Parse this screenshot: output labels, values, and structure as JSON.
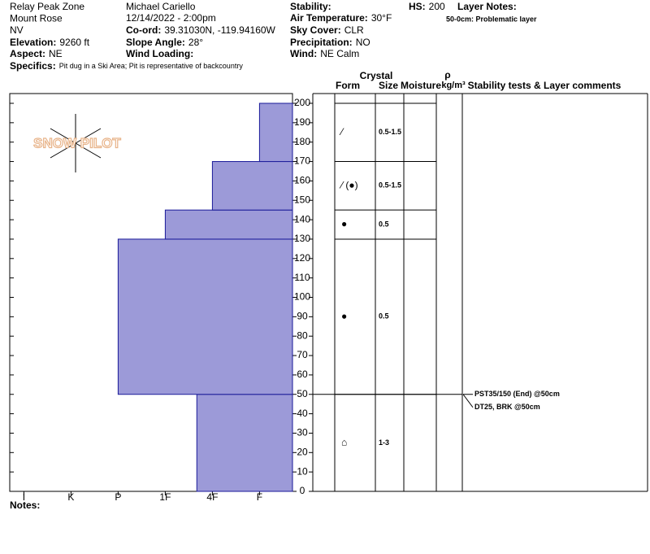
{
  "header": {
    "location": [
      "Relay Peak Zone",
      "Mount Rose",
      "NV"
    ],
    "observer": "Michael Cariello",
    "date": "12/14/2022 - 2:00pm",
    "fields": [
      {
        "label": "Elevation:",
        "value": "9260 ft"
      },
      {
        "label": "Aspect:",
        "value": "NE"
      },
      {
        "label": "Specifics:",
        "value": "Pit dug in a Ski Area; Pit is representative of backcountry"
      },
      {
        "label": "Co-ord:",
        "value": "39.31030N, -119.94160W"
      },
      {
        "label": "Slope Angle:",
        "value": "28°"
      },
      {
        "label": "Wind Loading:"
      },
      {
        "label": "Stability:"
      },
      {
        "label": "Air Temperature:",
        "value": "30°F"
      },
      {
        "label": "Sky Cover:",
        "value": "CLR"
      },
      {
        "label": "Precipitation:",
        "value": "NO"
      },
      {
        "label": "Wind:",
        "value": "NE Calm"
      },
      {
        "label": "HS:",
        "value": "200"
      },
      {
        "label": "Layer Notes:"
      }
    ],
    "layer_note": "50-0cm: Problematic layer"
  },
  "columns": {
    "crystal": "Crystal",
    "form": "Form",
    "size": "Size",
    "moisture": "Moisture",
    "density": "ρ",
    "density_unit": "kg/m³",
    "comments": "Stability tests & Layer comments"
  },
  "watermark": "SNOW PILOT",
  "notes": "Notes:",
  "chart_data": {
    "type": "hardness-profile",
    "color": "#9c9ad8",
    "ylim": [
      0,
      200
    ],
    "yticks": [
      0,
      10,
      20,
      30,
      40,
      50,
      60,
      70,
      80,
      90,
      100,
      110,
      120,
      130,
      140,
      150,
      160,
      170,
      180,
      190,
      200
    ],
    "xlim": [
      0.3,
      6.3
    ],
    "xticks": [
      {
        "value": 6,
        "label": "I"
      },
      {
        "value": 5,
        "label": "K"
      },
      {
        "value": 4,
        "label": "P"
      },
      {
        "value": 3,
        "label": "1F"
      },
      {
        "value": 2,
        "label": "4F"
      },
      {
        "value": 1,
        "label": "F"
      }
    ],
    "layers": [
      {
        "bottom": 0,
        "top": 50,
        "hardness": 2.33,
        "form": "⌂",
        "size": "1-3"
      },
      {
        "bottom": 50,
        "top": 130,
        "hardness": 4,
        "form": "●",
        "size": "0.5"
      },
      {
        "bottom": 130,
        "top": 145,
        "hardness": 3,
        "form": "●",
        "size": "0.5"
      },
      {
        "bottom": 145,
        "top": 170,
        "hardness": 2,
        "form": "⁄ (●)",
        "size": "0.5-1.5"
      },
      {
        "bottom": 170,
        "top": 200,
        "hardness": 1,
        "form": "⁄",
        "size": "0.5-1.5"
      }
    ],
    "tests": [
      {
        "depth": 50,
        "text": "PST35/150 (End) @50cm"
      },
      {
        "depth": 50,
        "text": "DT25, BRK @50cm"
      }
    ]
  }
}
